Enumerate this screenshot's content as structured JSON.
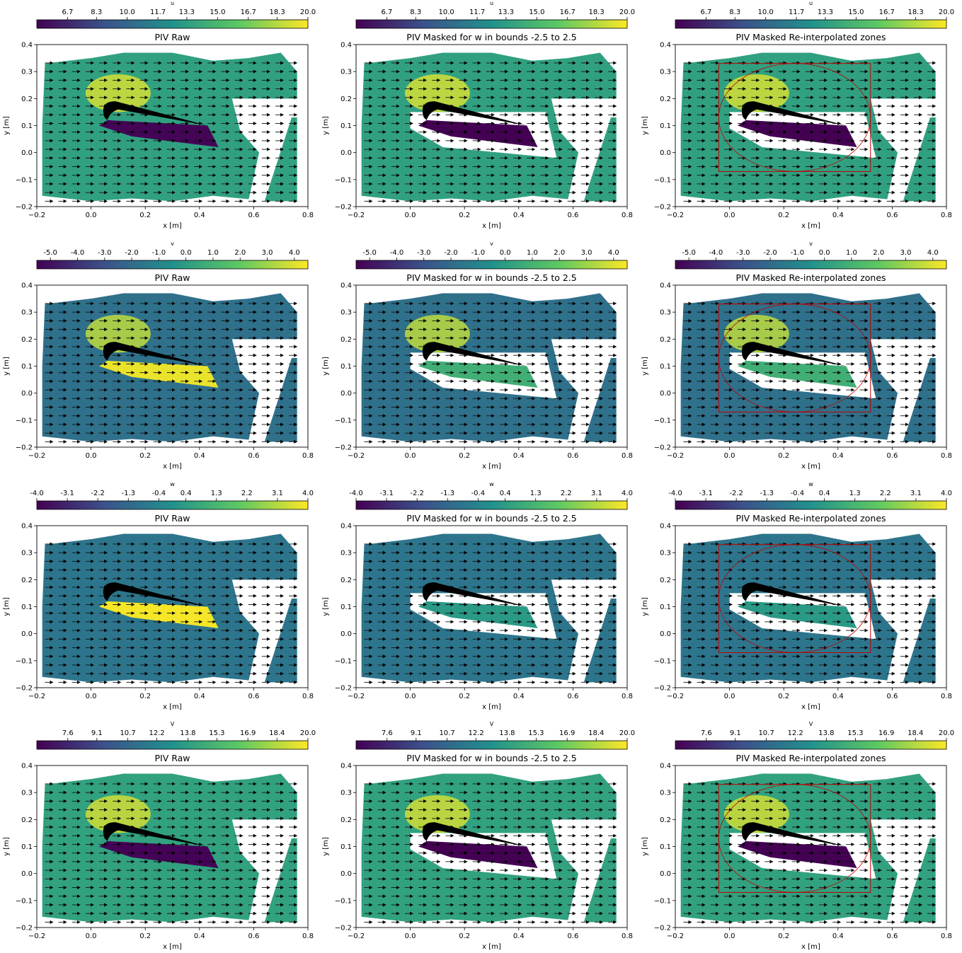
{
  "chart_data": {
    "type": "heatmap",
    "layout": "4 rows x 3 columns of PIV velocity field panels with quiver arrows",
    "columns": [
      "PIV Raw",
      "PIV Masked for w in bounds -2.5 to 2.5",
      "PIV Masked Re-interpolated zones"
    ],
    "xlabel": "x [m]",
    "ylabel": "y [m]",
    "xlim": [
      -0.2,
      0.8
    ],
    "ylim": [
      -0.2,
      0.4
    ],
    "xticks": [
      "−0.2",
      "0.0",
      "0.2",
      "0.4",
      "0.6",
      "0.8"
    ],
    "yticks": [
      "−0.2",
      "−0.1",
      "0.0",
      "0.1",
      "0.2",
      "0.3",
      "0.4"
    ],
    "colormap": "viridis",
    "colors": [
      "#440154",
      "#3b528b",
      "#21918c",
      "#5ec962",
      "#fde725"
    ],
    "reinterp_zone_color": "#c00000",
    "rows": [
      {
        "variable": "u",
        "colorbar_ticks": [
          "6.7",
          "8.3",
          "10.0",
          "11.7",
          "13.3",
          "15.0",
          "16.7",
          "18.3",
          "20.0"
        ],
        "colorbar_range": [
          5.0,
          20.0
        ],
        "background_value": 13.5,
        "highlight_value": 19.0,
        "raw_wake_value": 5.2,
        "masked_wake_value": 5.0
      },
      {
        "variable": "v",
        "colorbar_ticks": [
          "-5.0",
          "-4.0",
          "-3.0",
          "-2.0",
          "-1.0",
          "0.0",
          "1.0",
          "2.0",
          "3.0",
          "4.0"
        ],
        "colorbar_range": [
          -5.5,
          4.5
        ],
        "background_value": -1.8,
        "highlight_value": 3.5,
        "raw_wake_value": 4.2,
        "masked_wake_value": 0.8
      },
      {
        "variable": "w",
        "colorbar_ticks": [
          "-4.0",
          "-3.1",
          "-2.2",
          "-1.3",
          "-0.4",
          "0.4",
          "1.3",
          "2.2",
          "3.1",
          "4.0"
        ],
        "colorbar_range": [
          -4.0,
          4.0
        ],
        "background_value": -0.9,
        "highlight_value": -0.9,
        "raw_wake_value": 3.9,
        "masked_wake_value": 0.3
      },
      {
        "variable": "V",
        "colorbar_ticks": [
          "7.6",
          "9.1",
          "10.7",
          "12.2",
          "13.8",
          "15.3",
          "16.9",
          "18.4",
          "20.0"
        ],
        "colorbar_range": [
          6.0,
          20.0
        ],
        "background_value": 14.0,
        "highlight_value": 19.0,
        "raw_wake_value": 6.1,
        "masked_wake_value": 6.0
      }
    ]
  }
}
